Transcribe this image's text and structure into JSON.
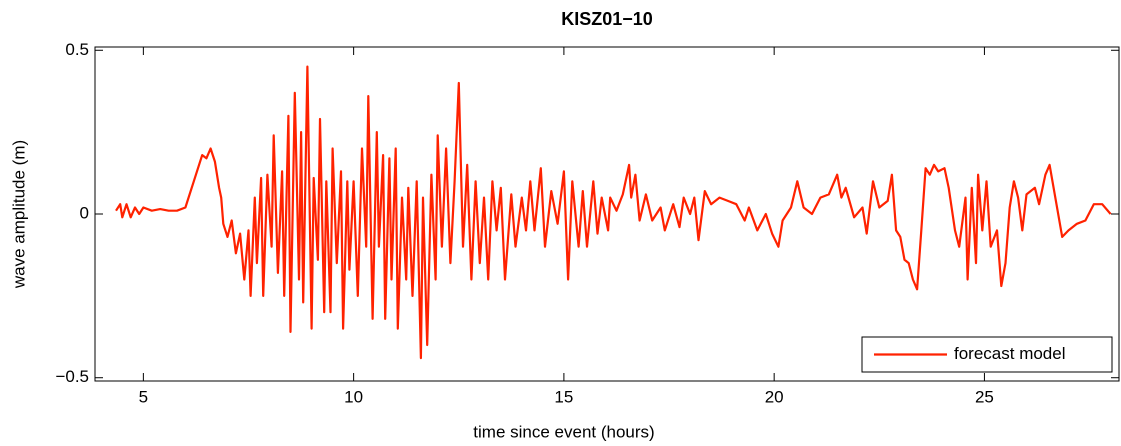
{
  "chart_data": {
    "type": "line",
    "title": "KISZ01−10",
    "xlabel": "time since event (hours)",
    "ylabel": "wave amplitude (m)",
    "xlim": [
      3.85,
      28.2
    ],
    "ylim": [
      -0.51,
      0.51
    ],
    "xticks": [
      5,
      10,
      15,
      20,
      25
    ],
    "yticks": [
      {
        "value": -0.5,
        "label": "−0.5"
      },
      0,
      0.5
    ],
    "legend": "lower right",
    "x": [
      4.35,
      4.45,
      4.5,
      4.6,
      4.7,
      4.8,
      4.9,
      5.0,
      5.2,
      5.4,
      5.6,
      5.8,
      6.0,
      6.2,
      6.4,
      6.5,
      6.6,
      6.7,
      6.8,
      6.85,
      6.9,
      7.0,
      7.1,
      7.2,
      7.3,
      7.4,
      7.5,
      7.55,
      7.65,
      7.7,
      7.8,
      7.85,
      7.95,
      8.05,
      8.1,
      8.2,
      8.3,
      8.35,
      8.45,
      8.5,
      8.6,
      8.7,
      8.75,
      8.8,
      8.9,
      9.0,
      9.05,
      9.15,
      9.2,
      9.3,
      9.35,
      9.45,
      9.5,
      9.6,
      9.7,
      9.75,
      9.85,
      9.9,
      10.0,
      10.1,
      10.2,
      10.3,
      10.35,
      10.45,
      10.55,
      10.6,
      10.7,
      10.75,
      10.85,
      10.9,
      11.0,
      11.05,
      11.15,
      11.25,
      11.3,
      11.4,
      11.5,
      11.6,
      11.65,
      11.75,
      11.85,
      11.95,
      12.0,
      12.1,
      12.2,
      12.3,
      12.4,
      12.5,
      12.6,
      12.7,
      12.8,
      12.9,
      13.0,
      13.1,
      13.2,
      13.3,
      13.4,
      13.5,
      13.6,
      13.75,
      13.85,
      14.0,
      14.1,
      14.2,
      14.3,
      14.45,
      14.55,
      14.7,
      14.85,
      15.0,
      15.1,
      15.2,
      15.35,
      15.45,
      15.55,
      15.7,
      15.8,
      15.9,
      16.05,
      16.1,
      16.25,
      16.4,
      16.55,
      16.6,
      16.7,
      16.8,
      16.95,
      17.1,
      17.3,
      17.4,
      17.6,
      17.75,
      17.85,
      18.0,
      18.1,
      18.2,
      18.35,
      18.5,
      18.7,
      18.9,
      19.1,
      19.3,
      19.4,
      19.6,
      19.8,
      19.95,
      20.1,
      20.2,
      20.4,
      20.55,
      20.7,
      20.9,
      21.1,
      21.3,
      21.5,
      21.6,
      21.7,
      21.9,
      22.1,
      22.2,
      22.35,
      22.5,
      22.7,
      22.8,
      22.9,
      23.0,
      23.1,
      23.2,
      23.3,
      23.4,
      23.5,
      23.6,
      23.7,
      23.8,
      23.9,
      24.05,
      24.15,
      24.3,
      24.4,
      24.55,
      24.6,
      24.7,
      24.8,
      24.85,
      24.95,
      25.05,
      25.15,
      25.3,
      25.4,
      25.5,
      25.6,
      25.7,
      25.8,
      25.9,
      26.0,
      26.2,
      26.3,
      26.45,
      26.55,
      26.7,
      26.85,
      27.0,
      27.2,
      27.4,
      27.6,
      27.8,
      28.0
    ],
    "series": [
      {
        "name": "forecast model",
        "color": "#ff2200",
        "values": [
          0.01,
          0.03,
          -0.01,
          0.03,
          -0.01,
          0.02,
          0.0,
          0.02,
          0.01,
          0.015,
          0.01,
          0.01,
          0.02,
          0.1,
          0.18,
          0.17,
          0.2,
          0.16,
          0.08,
          0.05,
          -0.03,
          -0.07,
          -0.02,
          -0.12,
          -0.06,
          -0.2,
          -0.05,
          -0.25,
          0.05,
          -0.15,
          0.11,
          -0.25,
          0.12,
          -0.1,
          0.24,
          -0.18,
          0.13,
          -0.25,
          0.3,
          -0.36,
          0.37,
          -0.2,
          0.25,
          -0.27,
          0.45,
          -0.35,
          0.11,
          -0.14,
          0.29,
          -0.3,
          0.1,
          -0.3,
          0.2,
          -0.15,
          0.13,
          -0.35,
          0.1,
          -0.17,
          0.1,
          -0.25,
          0.2,
          -0.1,
          0.36,
          -0.32,
          0.25,
          -0.1,
          0.18,
          -0.32,
          0.17,
          -0.2,
          0.2,
          -0.35,
          0.05,
          -0.2,
          0.08,
          -0.25,
          0.1,
          -0.44,
          0.05,
          -0.4,
          0.12,
          -0.2,
          0.24,
          -0.1,
          0.2,
          -0.15,
          0.1,
          0.4,
          -0.1,
          0.15,
          -0.2,
          0.1,
          -0.15,
          0.05,
          -0.2,
          0.1,
          -0.05,
          0.08,
          -0.2,
          0.06,
          -0.1,
          0.05,
          -0.05,
          0.1,
          -0.05,
          0.14,
          -0.1,
          0.07,
          -0.03,
          0.13,
          -0.2,
          0.1,
          -0.1,
          0.07,
          -0.1,
          0.1,
          -0.06,
          0.05,
          -0.05,
          0.05,
          0.01,
          0.06,
          0.15,
          0.05,
          0.12,
          -0.02,
          0.06,
          -0.02,
          0.02,
          -0.05,
          0.03,
          -0.04,
          0.05,
          0.0,
          0.05,
          -0.08,
          0.07,
          0.03,
          0.05,
          0.04,
          0.03,
          -0.02,
          0.02,
          -0.05,
          0.0,
          -0.06,
          -0.1,
          -0.02,
          0.02,
          0.1,
          0.02,
          0.0,
          0.05,
          0.06,
          0.12,
          0.05,
          0.08,
          -0.01,
          0.02,
          -0.06,
          0.1,
          0.02,
          0.04,
          0.12,
          -0.05,
          -0.07,
          -0.14,
          -0.15,
          -0.2,
          -0.23,
          -0.05,
          0.14,
          0.12,
          0.15,
          0.13,
          0.14,
          0.08,
          -0.05,
          -0.1,
          0.05,
          -0.2,
          0.08,
          -0.15,
          0.12,
          -0.05,
          0.1,
          -0.1,
          -0.05,
          -0.22,
          -0.15,
          0.02,
          0.1,
          0.05,
          -0.05,
          0.06,
          0.08,
          0.03,
          0.12,
          0.15,
          0.04,
          -0.07,
          -0.05,
          -0.03,
          -0.02,
          0.03,
          0.03,
          0.0
        ]
      }
    ]
  }
}
